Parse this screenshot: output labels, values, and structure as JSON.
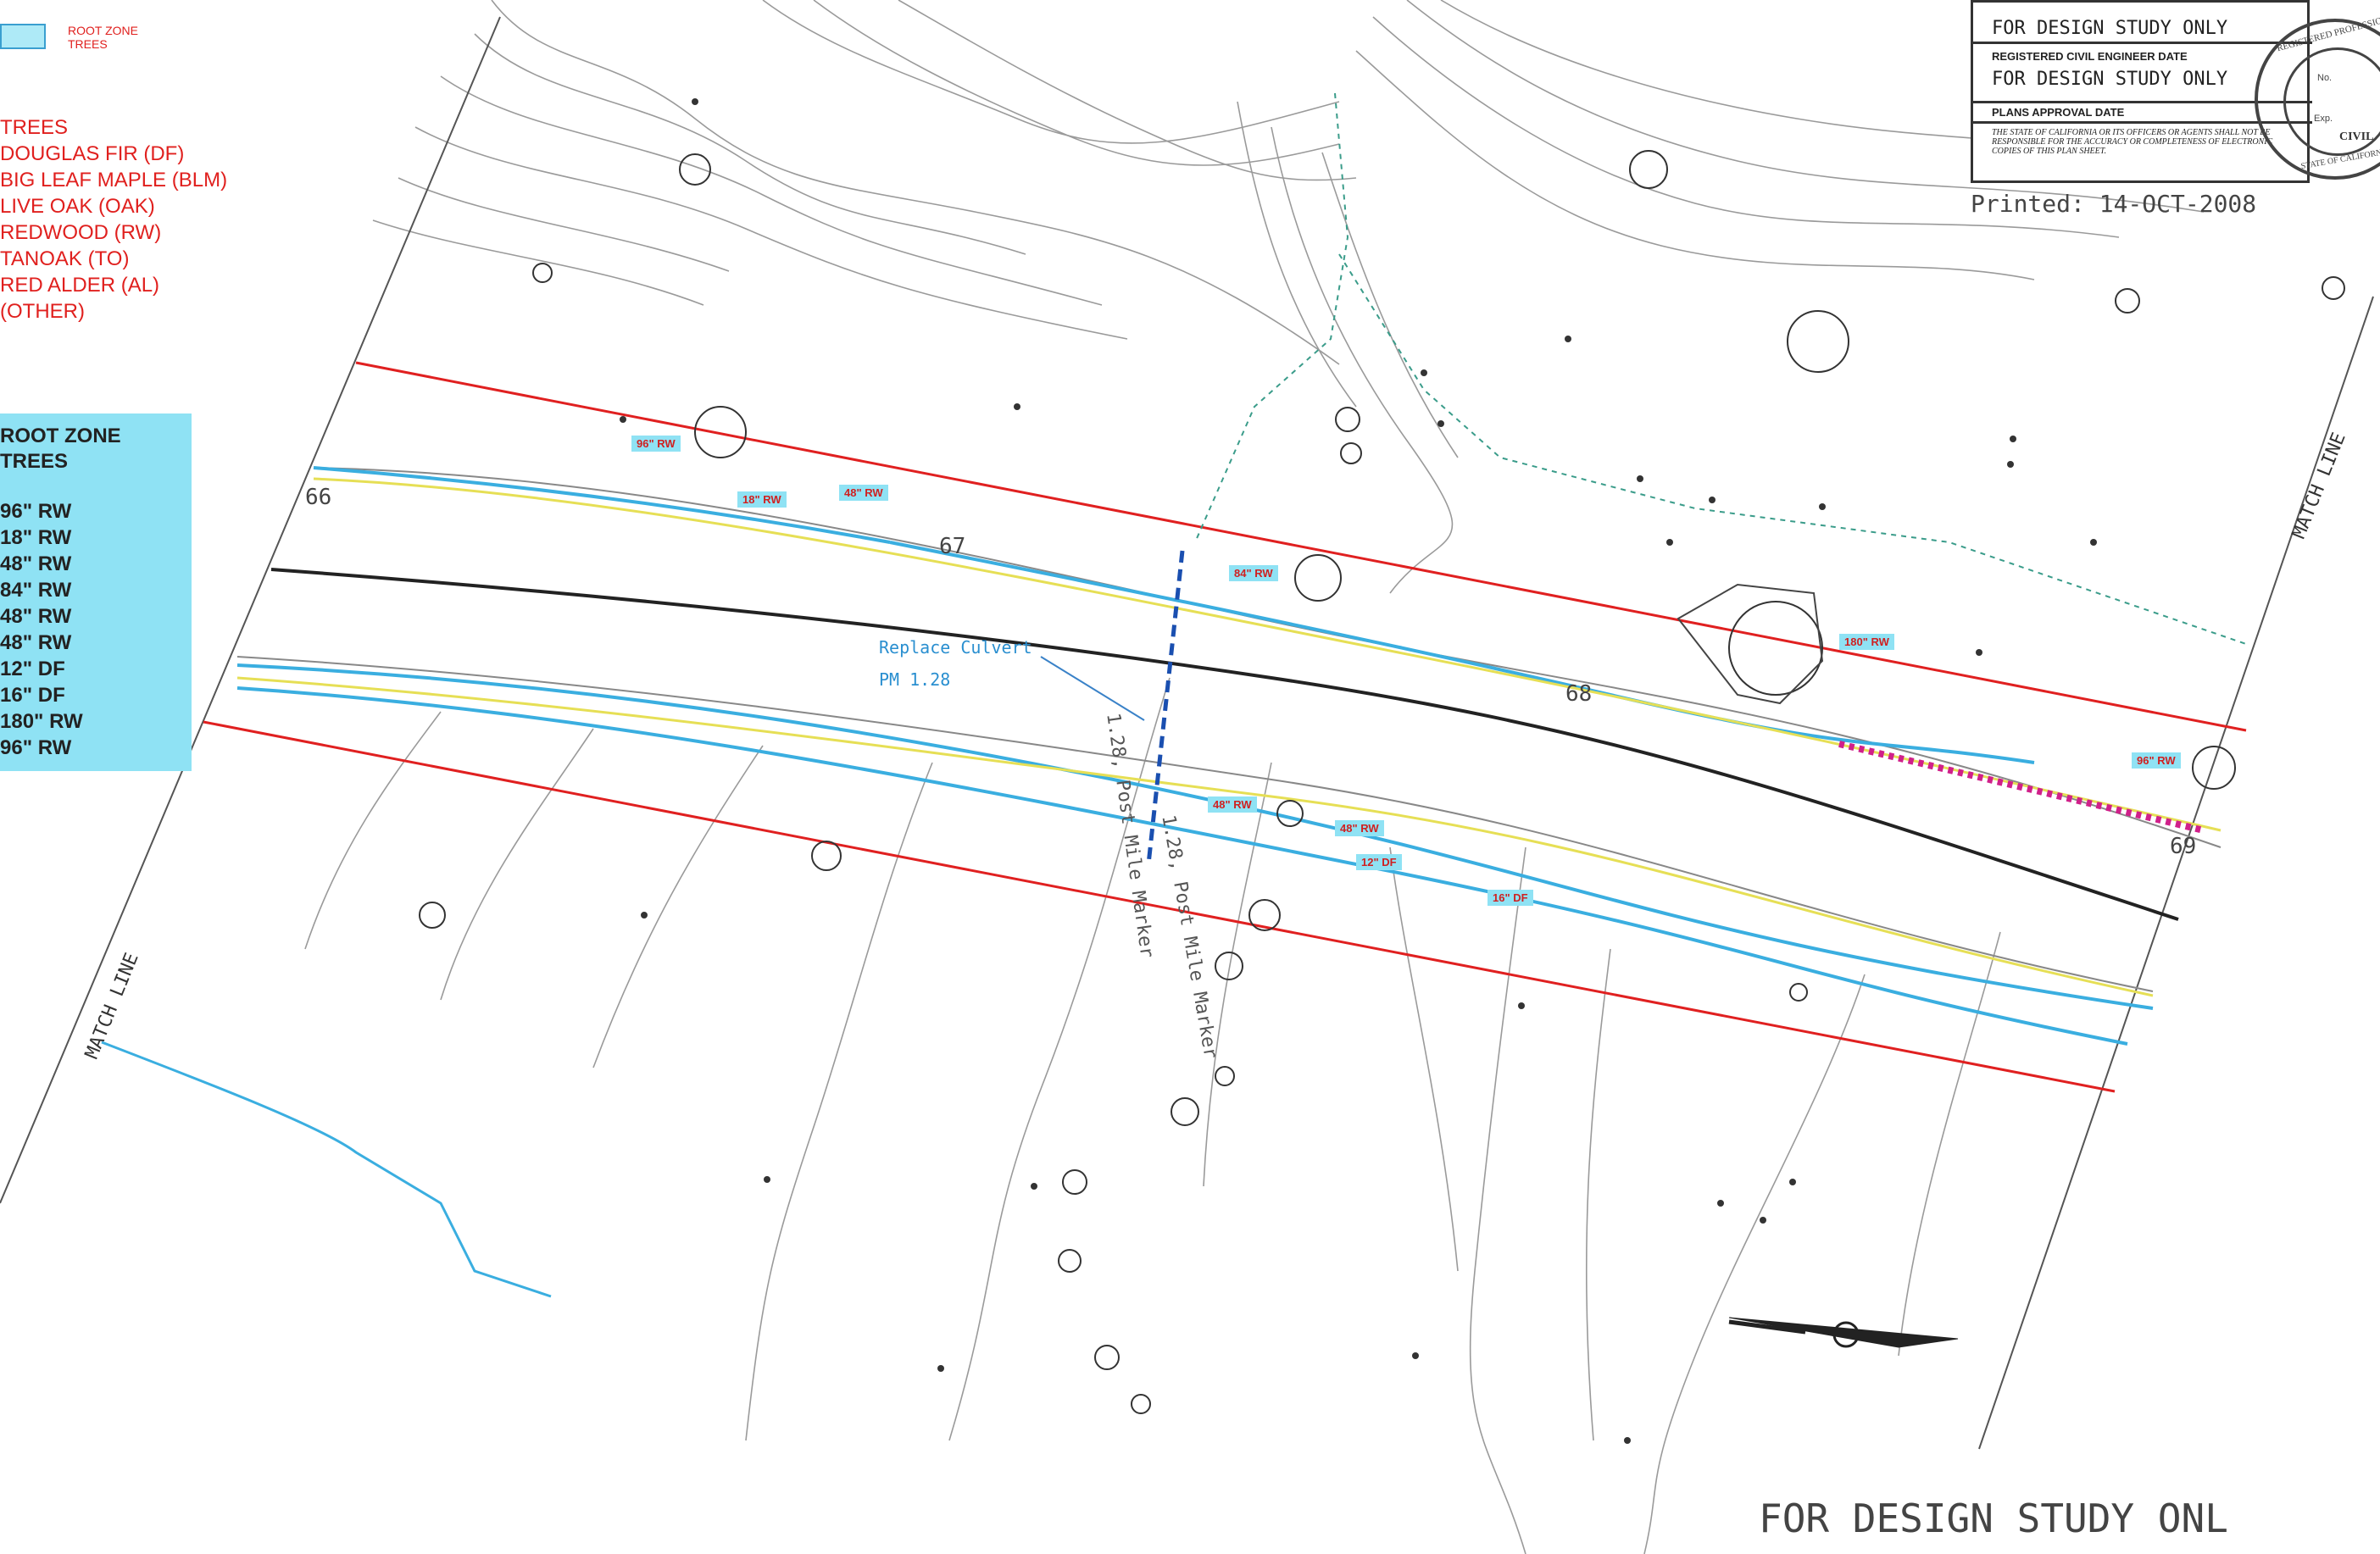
{
  "legend": {
    "swatch_label": "ROOT ZONE TREES",
    "species_header": "TREES",
    "species": [
      "DOUGLAS FIR (DF)",
      "BIG LEAF MAPLE (BLM)",
      "LIVE OAK (OAK)",
      "REDWOOD (RW)",
      "TANOAK (TO)",
      "RED ALDER (AL)",
      "(OTHER)"
    ]
  },
  "root_zone": {
    "title": "ROOT ZONE TREES",
    "items": [
      "96\" RW",
      "18\" RW",
      "48\" RW",
      "84\" RW",
      "48\" RW",
      "48\" RW",
      "12\" DF",
      "16\" DF",
      "180\" RW",
      "96\" RW"
    ]
  },
  "title_block": {
    "row1": "FOR DESIGN STUDY ONLY",
    "row2": "REGISTERED CIVIL ENGINEER  DATE",
    "row3": "FOR DESIGN STUDY ONLY",
    "row4": "PLANS APPROVAL DATE",
    "row5": "THE STATE OF CALIFORNIA OR ITS OFFICERS OR AGENTS SHALL NOT BE RESPONSIBLE FOR THE ACCURACY OR COMPLETENESS OF ELECTRONIC COPIES OF THIS PLAN SHEET.",
    "seal_text": "REGISTERED PROFESSIONAL",
    "seal_civil": "CIVIL",
    "seal_no": "No.",
    "seal_exp": "Exp.",
    "seal_state": "STATE OF CALIFORNIA"
  },
  "printed": "Printed:  14-OCT-2008",
  "footer_text": "FOR DESIGN STUDY ONL",
  "map": {
    "match_line_left": "MATCH LINE",
    "match_line_right": "MATCH LINE",
    "station_66": "66",
    "station_67": "67",
    "station_68": "68",
    "station_69": "69",
    "culvert_label": "Replace Culvert",
    "culvert_pm": "PM 1.28",
    "post_marker_top": "1.28, Post Mile Marker",
    "post_marker_bottom": "1.28, Post Mile Marker",
    "tree_tags": [
      "96\" RW",
      "18\" RW",
      "48\" RW",
      "84\" RW",
      "180\" RW",
      "96\" RW",
      "48\" RW",
      "48\" RW",
      "12\" DF",
      "16\" DF"
    ]
  },
  "colors": {
    "legend_red": "#e0201e",
    "root_zone_fill": "#8fe2f4",
    "row_line_red": "#e02020",
    "edge_blue": "#3aaee0",
    "centerline_yellow": "#e6df55",
    "culvert_blue": "#1a4fb0",
    "impact_magenta": "#d0208a"
  },
  "icons": {
    "north_arrow": "north-arrow-icon",
    "seal": "engineer-seal-icon"
  }
}
